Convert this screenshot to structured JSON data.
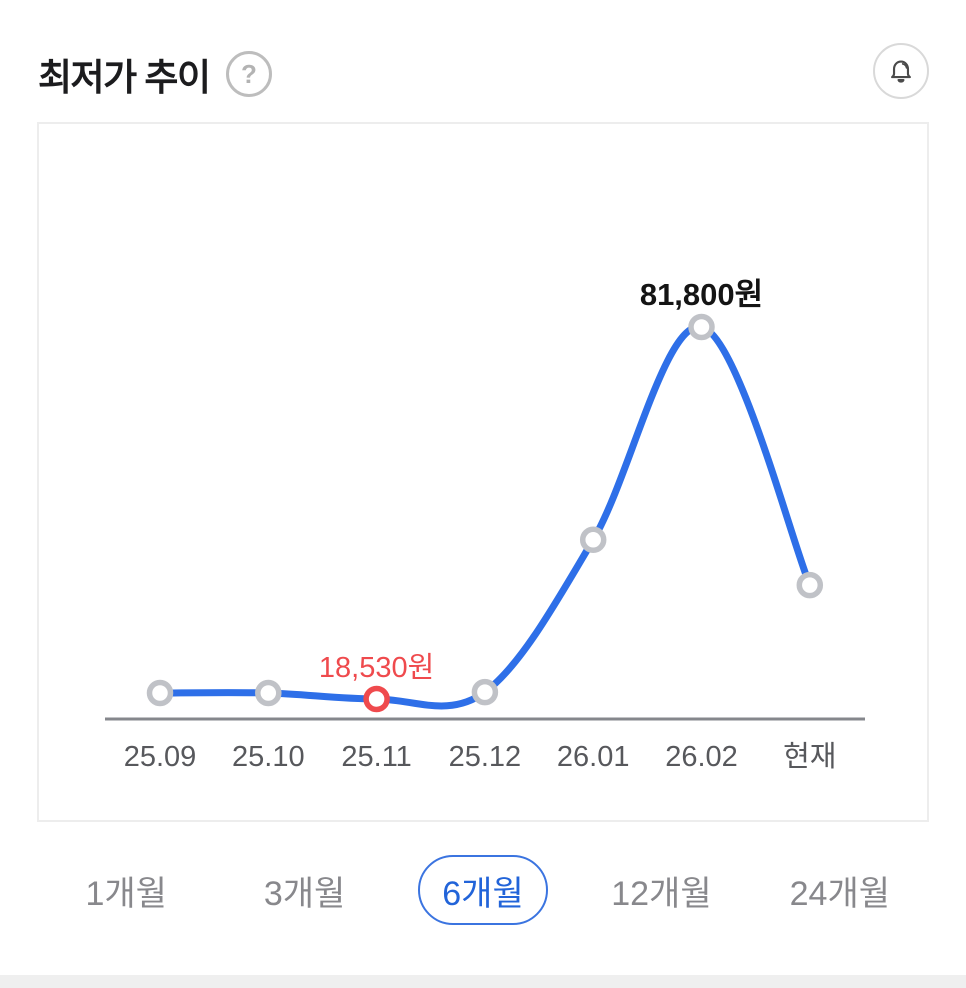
{
  "header": {
    "title": "최저가 추이",
    "help_glyph": "?",
    "help_icon": "question-circle-icon",
    "bell_icon": "bell-icon"
  },
  "chart_data": {
    "type": "line",
    "title": "최저가 추이",
    "categories": [
      "25.09",
      "25.10",
      "25.11",
      "25.12",
      "26.01",
      "26.02",
      "현재"
    ],
    "values": [
      19550,
      19550,
      18530,
      19700,
      45600,
      81800,
      37900
    ],
    "min": {
      "index": 2,
      "label": "18,530원",
      "value": 18530
    },
    "max": {
      "index": 5,
      "label": "81,800원",
      "value": 81800
    },
    "unit": "원",
    "ylim": [
      15000,
      90000
    ],
    "grid": false,
    "legend": false,
    "line_color": "#2e6fe8",
    "marker_ring_color": "#c0c2c7",
    "marker_fill_color": "#ffffff",
    "min_marker_color": "#ef4a4d",
    "max_label_color": "#141414",
    "axis_color": "#85878c",
    "tick_label_color": "#57585c"
  },
  "period_tabs": {
    "items": [
      {
        "label": "1개월",
        "selected": false
      },
      {
        "label": "3개월",
        "selected": false
      },
      {
        "label": "6개월",
        "selected": true
      },
      {
        "label": "12개월",
        "selected": false
      },
      {
        "label": "24개월",
        "selected": false
      }
    ]
  }
}
